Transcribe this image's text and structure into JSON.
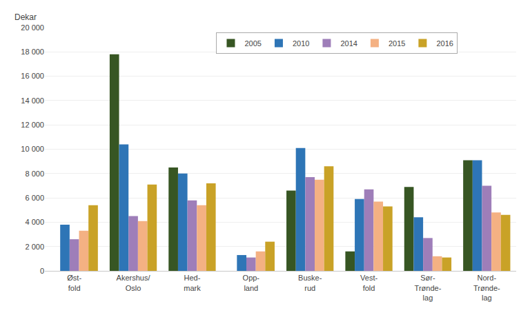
{
  "chart_data": {
    "type": "bar",
    "categories": [
      "Øst-\nfold",
      "Akershus/\nOslo",
      "Hed-\nmark",
      "Opp-\nland",
      "Buske-\nrud",
      "Vest-\nfold",
      "Sør-\nTrønde-\nlag",
      "Nord-\nTrønde-\nlag"
    ],
    "series": [
      {
        "name": "2005",
        "color": "#375623",
        "values": [
          0,
          17800,
          8500,
          0,
          6600,
          1600,
          6900,
          9100
        ]
      },
      {
        "name": "2010",
        "color": "#2E75B6",
        "values": [
          3800,
          10400,
          8000,
          1300,
          10100,
          5900,
          4400,
          9100
        ]
      },
      {
        "name": "2014",
        "color": "#9E7EB9",
        "values": [
          2600,
          4500,
          5800,
          1100,
          7700,
          6700,
          2700,
          7000
        ]
      },
      {
        "name": "2015",
        "color": "#F4B183",
        "values": [
          3300,
          4100,
          5400,
          1600,
          7500,
          5700,
          1200,
          4800
        ]
      },
      {
        "name": "2016",
        "color": "#C9A227",
        "values": [
          5400,
          7100,
          7200,
          2400,
          8600,
          5300,
          1100,
          4600
        ]
      }
    ],
    "ylabel": "Dekar",
    "ylim": [
      0,
      20000
    ],
    "yticks": [
      0,
      {
        "value": 2000,
        "label": "2 000"
      },
      {
        "value": 4000,
        "label": "4 000"
      },
      {
        "value": 6000,
        "label": "6 000"
      },
      {
        "value": 8000,
        "label": "8 000"
      },
      {
        "value": 10000,
        "label": "10 000"
      },
      {
        "value": 12000,
        "label": "12 000"
      },
      {
        "value": 14000,
        "label": "14 000"
      },
      {
        "value": 16000,
        "label": "16 000"
      },
      {
        "value": 18000,
        "label": "18 000"
      },
      {
        "value": 20000,
        "label": "20 000"
      }
    ],
    "grid": true,
    "legend": "upper center"
  }
}
